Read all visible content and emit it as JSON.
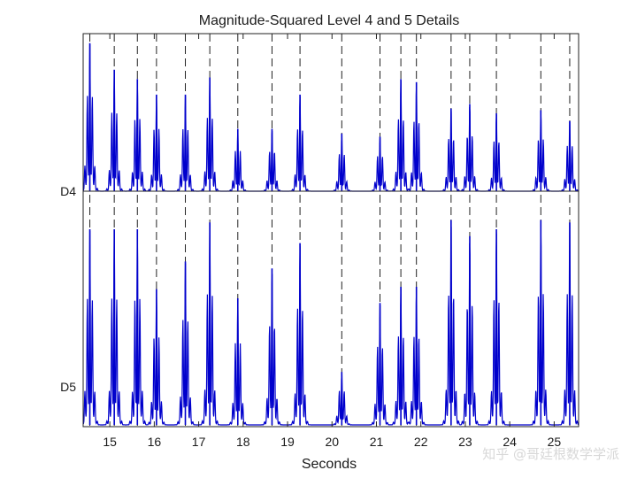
{
  "chart_data": {
    "type": "line",
    "title": "Magnitude-Squared Level 4 and 5 Details",
    "xlabel": "Seconds",
    "ylabel": "",
    "xlim": [
      14.4,
      25.55
    ],
    "xticks": [
      "15",
      "16",
      "17",
      "18",
      "19",
      "20",
      "21",
      "22",
      "23",
      "24",
      "25"
    ],
    "xtick_values": [
      15,
      16,
      17,
      18,
      19,
      20,
      21,
      22,
      23,
      24,
      25
    ],
    "grid": false,
    "line_color": "#0000cc",
    "marker_line_color": "#222222",
    "panels": [
      {
        "name": "D4",
        "peaks": [
          {
            "t": 14.55,
            "h": 0.95
          },
          {
            "t": 15.1,
            "h": 0.78
          },
          {
            "t": 15.62,
            "h": 0.72
          },
          {
            "t": 16.05,
            "h": 0.62
          },
          {
            "t": 16.7,
            "h": 0.62
          },
          {
            "t": 17.25,
            "h": 0.73
          },
          {
            "t": 17.88,
            "h": 0.4
          },
          {
            "t": 18.65,
            "h": 0.4
          },
          {
            "t": 19.28,
            "h": 0.62
          },
          {
            "t": 20.22,
            "h": 0.37
          },
          {
            "t": 21.08,
            "h": 0.35
          },
          {
            "t": 21.55,
            "h": 0.72
          },
          {
            "t": 21.9,
            "h": 0.7
          },
          {
            "t": 22.68,
            "h": 0.53
          },
          {
            "t": 23.1,
            "h": 0.56
          },
          {
            "t": 23.7,
            "h": 0.5
          },
          {
            "t": 24.7,
            "h": 0.52
          },
          {
            "t": 25.35,
            "h": 0.45
          }
        ]
      },
      {
        "name": "D5",
        "peaks": [
          {
            "t": 14.55,
            "h": 0.85
          },
          {
            "t": 15.1,
            "h": 0.85
          },
          {
            "t": 15.62,
            "h": 0.85
          },
          {
            "t": 16.05,
            "h": 0.59
          },
          {
            "t": 16.7,
            "h": 0.71
          },
          {
            "t": 17.25,
            "h": 0.88
          },
          {
            "t": 17.88,
            "h": 0.55
          },
          {
            "t": 18.65,
            "h": 0.68
          },
          {
            "t": 19.28,
            "h": 0.79
          },
          {
            "t": 20.22,
            "h": 0.23
          },
          {
            "t": 21.08,
            "h": 0.53
          },
          {
            "t": 21.55,
            "h": 0.6
          },
          {
            "t": 21.9,
            "h": 0.6
          },
          {
            "t": 22.68,
            "h": 0.89
          },
          {
            "t": 23.1,
            "h": 0.82
          },
          {
            "t": 23.7,
            "h": 0.85
          },
          {
            "t": 24.7,
            "h": 0.89
          },
          {
            "t": 25.35,
            "h": 0.88
          }
        ]
      }
    ],
    "event_markers": [
      14.55,
      15.1,
      15.62,
      16.05,
      16.7,
      17.25,
      17.88,
      18.65,
      19.28,
      20.22,
      21.08,
      21.55,
      21.9,
      22.68,
      23.1,
      23.7,
      24.7,
      25.35
    ]
  },
  "watermark": "知乎 @哥廷根数学学派"
}
